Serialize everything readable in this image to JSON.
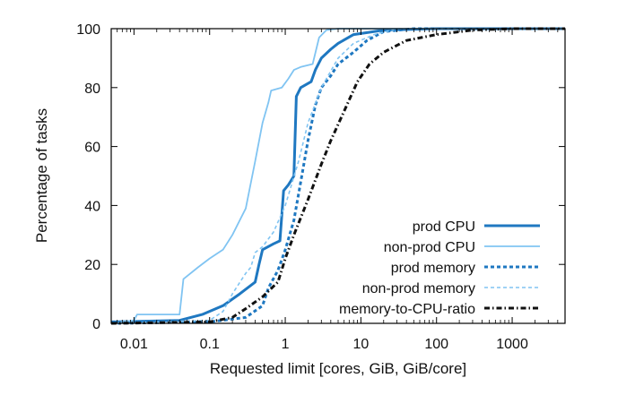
{
  "chart_data": {
    "type": "line",
    "xlabel": "Requested limit [cores, GiB, GiB/core]",
    "ylabel": "Percentage of tasks",
    "xscale": "log",
    "xlim": [
      0.005,
      5000
    ],
    "ylim": [
      0,
      100
    ],
    "x_ticks": [
      0.01,
      0.1,
      1,
      10,
      100,
      1000
    ],
    "x_tick_labels": [
      "0.01",
      "0.1",
      "1",
      "10",
      "100",
      "1000"
    ],
    "y_ticks": [
      0,
      20,
      40,
      60,
      80,
      100
    ],
    "y_tick_labels": [
      "0",
      "20",
      "40",
      "60",
      "80",
      "100"
    ],
    "grid": false,
    "legend_position": "bottom-right",
    "series": [
      {
        "name": "prod CPU",
        "color": "#1f78c1",
        "style": "solid-thick",
        "points": [
          [
            0.005,
            0.5
          ],
          [
            0.04,
            1
          ],
          [
            0.08,
            3
          ],
          [
            0.15,
            6
          ],
          [
            0.25,
            10
          ],
          [
            0.4,
            14
          ],
          [
            0.45,
            20
          ],
          [
            0.5,
            25
          ],
          [
            0.7,
            27
          ],
          [
            0.85,
            28
          ],
          [
            0.95,
            45
          ],
          [
            1.1,
            47
          ],
          [
            1.3,
            50
          ],
          [
            1.4,
            77
          ],
          [
            1.6,
            80
          ],
          [
            2.2,
            82
          ],
          [
            2.5,
            86
          ],
          [
            3,
            90
          ],
          [
            4,
            93
          ],
          [
            5,
            95
          ],
          [
            8,
            98
          ],
          [
            20,
            99.5
          ],
          [
            100,
            100
          ],
          [
            5000,
            100
          ]
        ]
      },
      {
        "name": "non-prod CPU",
        "color": "#80c4f2",
        "style": "solid-thin",
        "points": [
          [
            0.005,
            0
          ],
          [
            0.01,
            1
          ],
          [
            0.011,
            3
          ],
          [
            0.04,
            3
          ],
          [
            0.045,
            15
          ],
          [
            0.07,
            19
          ],
          [
            0.1,
            22
          ],
          [
            0.15,
            25
          ],
          [
            0.2,
            30
          ],
          [
            0.3,
            39
          ],
          [
            0.4,
            55
          ],
          [
            0.5,
            68
          ],
          [
            0.6,
            75
          ],
          [
            0.65,
            79
          ],
          [
            0.9,
            80
          ],
          [
            1.1,
            83
          ],
          [
            1.3,
            86
          ],
          [
            1.6,
            87
          ],
          [
            2.3,
            88
          ],
          [
            2.8,
            97
          ],
          [
            3.5,
            99.5
          ],
          [
            5,
            100
          ],
          [
            5000,
            100
          ]
        ]
      },
      {
        "name": "prod memory",
        "color": "#1f78c1",
        "style": "dashed-thick",
        "points": [
          [
            0.005,
            0
          ],
          [
            0.1,
            0.5
          ],
          [
            0.3,
            2
          ],
          [
            0.5,
            6
          ],
          [
            0.6,
            12
          ],
          [
            0.8,
            18
          ],
          [
            1,
            25
          ],
          [
            1.3,
            35
          ],
          [
            1.6,
            48
          ],
          [
            2,
            62
          ],
          [
            2.5,
            74
          ],
          [
            3,
            80
          ],
          [
            4,
            84
          ],
          [
            5,
            88
          ],
          [
            8,
            92
          ],
          [
            12,
            96
          ],
          [
            20,
            99
          ],
          [
            50,
            100
          ],
          [
            5000,
            100
          ]
        ]
      },
      {
        "name": "non-prod memory",
        "color": "#80c4f2",
        "style": "dashed-thin",
        "points": [
          [
            0.005,
            0
          ],
          [
            0.1,
            1
          ],
          [
            0.15,
            4
          ],
          [
            0.2,
            10
          ],
          [
            0.3,
            17
          ],
          [
            0.35,
            19
          ],
          [
            0.4,
            24
          ],
          [
            0.5,
            26
          ],
          [
            0.7,
            31
          ],
          [
            1,
            40
          ],
          [
            1.5,
            55
          ],
          [
            2,
            68
          ],
          [
            3,
            80
          ],
          [
            5,
            90
          ],
          [
            8,
            95
          ],
          [
            15,
            98
          ],
          [
            30,
            100
          ],
          [
            5000,
            100
          ]
        ]
      },
      {
        "name": "memory-to-CPU-ratio",
        "color": "#111111",
        "style": "dashdot-thick",
        "points": [
          [
            0.005,
            0
          ],
          [
            0.1,
            0.5
          ],
          [
            0.2,
            2
          ],
          [
            0.3,
            5
          ],
          [
            0.5,
            9
          ],
          [
            0.8,
            14
          ],
          [
            1,
            22
          ],
          [
            1.3,
            30
          ],
          [
            2,
            42
          ],
          [
            3,
            54
          ],
          [
            4,
            62
          ],
          [
            6,
            72
          ],
          [
            9,
            82
          ],
          [
            13,
            88
          ],
          [
            20,
            92
          ],
          [
            40,
            96
          ],
          [
            100,
            98
          ],
          [
            300,
            99.5
          ],
          [
            1000,
            100
          ],
          [
            5000,
            100
          ]
        ]
      }
    ]
  }
}
